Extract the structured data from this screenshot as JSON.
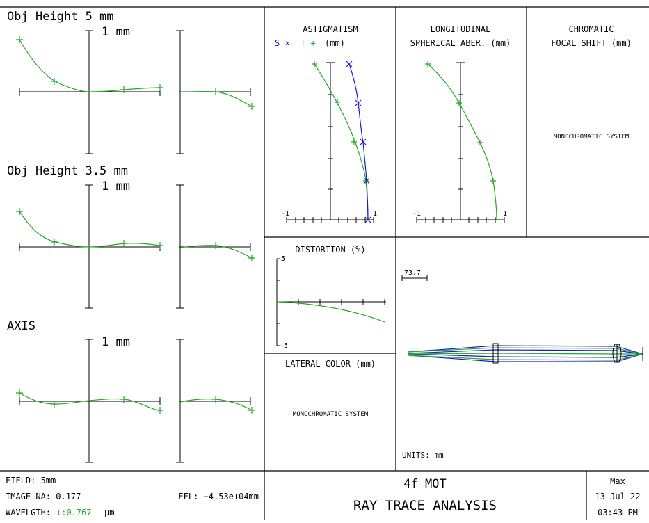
{
  "colors": {
    "green": "#22aa22",
    "blue": "#1a1acc",
    "ink": "#000000"
  },
  "ray_fan": {
    "unit_label": "1 mm",
    "fields": [
      {
        "title": "Obj Height 5 mm"
      },
      {
        "title": "Obj Height 3.5 mm"
      },
      {
        "title": "AXIS"
      }
    ]
  },
  "astigmatism": {
    "title": "ASTIGMATISM",
    "legend_s": "S ×",
    "legend_t": "T +",
    "legend_unit": "(mm)",
    "tick_min": "-1",
    "tick_max": "1"
  },
  "longitudinal": {
    "title_line1": "LONGITUDINAL",
    "title_line2": "SPHERICAL ABER. (mm)",
    "tick_min": "-1",
    "tick_max": "1"
  },
  "chromatic": {
    "title_line1": "CHROMATIC",
    "title_line2": "FOCAL SHIFT (mm)",
    "message": "MONOCHROMATIC SYSTEM"
  },
  "distortion": {
    "title": "DISTORTION (%)",
    "tick_max": "5",
    "tick_min": "-5"
  },
  "lateral_color": {
    "title": "LATERAL COLOR (mm)",
    "message": "MONOCHROMATIC SYSTEM"
  },
  "layout_view": {
    "scale_label": "73.7",
    "units": "UNITS: mm"
  },
  "footer": {
    "field": "FIELD: 5mm",
    "image_na": "IMAGE NA: 0.177",
    "efl": "EFL: −4.53e+04mm",
    "wavelength_label": "WAVELGTH:",
    "wavelength_value": "+:0.767",
    "wavelength_unit": "μm",
    "title_line1": "4f MOT",
    "title_line2": "RAY TRACE ANALYSIS",
    "user": "Max",
    "date": "13 Jul 22",
    "time": "03:43 PM"
  }
}
